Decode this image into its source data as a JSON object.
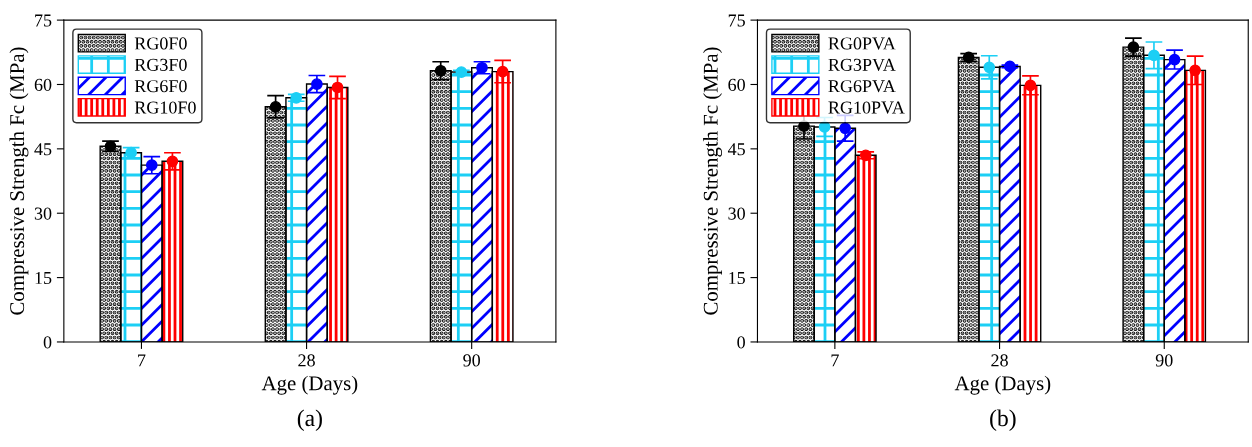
{
  "chart_data": [
    {
      "type": "bar",
      "categories": [
        "7",
        "28",
        "90"
      ],
      "xlabel": "Age (Days)",
      "ylabel": "Compressive Strength Fc (MPa)",
      "ylim": [
        0,
        75
      ],
      "yticks": [
        0,
        15,
        30,
        45,
        60,
        75
      ],
      "grid": false,
      "legend": "top left",
      "annotations": [
        "(a)"
      ],
      "series": [
        {
          "name": "RG0F0",
          "color": "#000000",
          "values": [
            45.6,
            54.8,
            63.2
          ]
        },
        {
          "name": "RG3F0",
          "color": "#1ccff5",
          "values": [
            44.1,
            56.9,
            62.9
          ]
        },
        {
          "name": "RG6F0",
          "color": "#0000ff",
          "values": [
            41.2,
            60.1,
            63.9
          ]
        },
        {
          "name": "RG10F0",
          "color": "#ff0000",
          "values": [
            42.1,
            59.3,
            63.0
          ]
        },
        {
          "type": "scatter",
          "marker": "circle",
          "color": "#000000",
          "x": [
            "7",
            "28",
            "90"
          ],
          "values": [
            45.6,
            54.8,
            63.2
          ],
          "errors": [
            1.2,
            2.6,
            2.1
          ]
        },
        {
          "type": "scatter",
          "marker": "circle",
          "color": "#1ccff5",
          "x": [
            "7",
            "28",
            "90"
          ],
          "values": [
            44.1,
            56.9,
            62.9
          ],
          "errors": [
            1.2,
            0.8,
            0.4
          ]
        },
        {
          "type": "scatter",
          "marker": "circle",
          "color": "#0000ff",
          "x": [
            "7",
            "28",
            "90"
          ],
          "values": [
            41.2,
            60.1,
            63.9
          ],
          "errors": [
            2.0,
            2.0,
            1.4
          ]
        },
        {
          "type": "scatter",
          "marker": "circle",
          "color": "#ff0000",
          "x": [
            "7",
            "28",
            "90"
          ],
          "values": [
            42.1,
            59.3,
            63.0
          ],
          "errors": [
            2.0,
            2.6,
            2.6
          ]
        }
      ]
    },
    {
      "type": "bar",
      "categories": [
        "7",
        "28",
        "90"
      ],
      "xlabel": "Age (Days)",
      "ylabel": "Compressive Strength Fc (MPa)",
      "ylim": [
        0,
        75
      ],
      "yticks": [
        0,
        15,
        30,
        45,
        60,
        75
      ],
      "grid": false,
      "legend": "top left",
      "annotations": [
        "(b)"
      ],
      "series": [
        {
          "name": "RG0PVA",
          "color": "#000000",
          "values": [
            50.3,
            66.3,
            68.7
          ]
        },
        {
          "name": "RG3PVA",
          "color": "#1ccff5",
          "values": [
            50.1,
            64.0,
            66.8
          ]
        },
        {
          "name": "RG6PVA",
          "color": "#0000ff",
          "values": [
            49.8,
            64.2,
            65.8
          ]
        },
        {
          "name": "RG10PVA",
          "color": "#ff0000",
          "values": [
            43.5,
            59.8,
            63.3
          ]
        },
        {
          "type": "scatter",
          "marker": "circle",
          "color": "#000000",
          "x": [
            "7",
            "28",
            "90"
          ],
          "values": [
            50.3,
            66.3,
            68.7
          ],
          "errors": [
            3.0,
            0.9,
            2.1
          ]
        },
        {
          "type": "scatter",
          "marker": "circle",
          "color": "#1ccff5",
          "x": [
            "7",
            "28",
            "90"
          ],
          "values": [
            50.1,
            64.0,
            66.8
          ],
          "errors": [
            2.2,
            2.7,
            3.1
          ]
        },
        {
          "type": "scatter",
          "marker": "circle",
          "color": "#0000ff",
          "x": [
            "7",
            "28",
            "90"
          ],
          "values": [
            49.8,
            64.2,
            65.8
          ],
          "errors": [
            3.0,
            0.3,
            2.2
          ]
        },
        {
          "type": "scatter",
          "marker": "circle",
          "color": "#ff0000",
          "x": [
            "7",
            "28",
            "90"
          ],
          "values": [
            43.5,
            59.8,
            63.3
          ],
          "errors": [
            0.8,
            2.2,
            3.3
          ]
        }
      ]
    }
  ]
}
